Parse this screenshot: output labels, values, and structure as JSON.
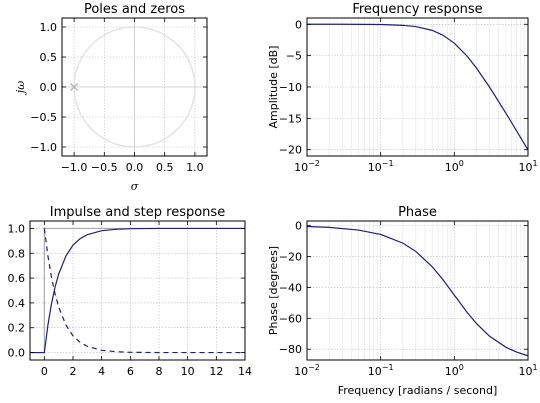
{
  "chart_data": [
    {
      "id": "pz",
      "type": "scatter",
      "title": "Poles and zeros",
      "xlabel": "σ",
      "ylabel": "jω",
      "xlim": [
        -1.2,
        1.2
      ],
      "ylim": [
        -1.15,
        1.15
      ],
      "xticks": [
        -1.0,
        -0.5,
        0.0,
        0.5,
        1.0
      ],
      "xticklabels": [
        "−1.0",
        "−0.5",
        "0.0",
        "0.5",
        "1.0"
      ],
      "yticks": [
        -1.0,
        -0.5,
        0.0,
        0.5,
        1.0
      ],
      "yticklabels": [
        "−1.0",
        "−0.5",
        "0.0",
        "0.5",
        "1.0"
      ],
      "grid": true,
      "poles": [
        {
          "x": -1.0,
          "y": 0.0
        }
      ],
      "zeros": [],
      "unit_circle": true
    },
    {
      "id": "freq",
      "type": "line",
      "title": "Frequency response",
      "xlabel": "",
      "ylabel": "Amplitude [dB]",
      "xscale": "log",
      "xlim": [
        0.01,
        10
      ],
      "ylim": [
        -21,
        1
      ],
      "xticks": [
        0.01,
        0.1,
        1,
        10
      ],
      "xticklabels": [
        [
          "10",
          "−2"
        ],
        [
          "10",
          "−1"
        ],
        [
          "10",
          "0"
        ],
        [
          "10",
          "1"
        ]
      ],
      "yticks": [
        0,
        -5,
        -10,
        -15,
        -20
      ],
      "yticklabels": [
        "0",
        "−5",
        "−10",
        "−15",
        "−20"
      ],
      "grid": true,
      "series": [
        {
          "x": [
            0.01,
            0.03,
            0.1,
            0.2,
            0.3,
            0.5,
            0.7,
            1.0,
            1.5,
            2.0,
            3.0,
            5.0,
            7.0,
            10.0
          ],
          "y": [
            0.0,
            0.0,
            -0.04,
            -0.17,
            -0.37,
            -0.97,
            -1.74,
            -3.01,
            -5.12,
            -6.99,
            -10.0,
            -14.15,
            -17.0,
            -20.04
          ]
        }
      ]
    },
    {
      "id": "impulse",
      "type": "line",
      "title": "Impulse and step response",
      "xlabel": "",
      "ylabel": "",
      "xlim": [
        -1,
        14
      ],
      "ylim": [
        -0.06,
        1.06
      ],
      "xticks": [
        0,
        2,
        4,
        6,
        8,
        10,
        12,
        14
      ],
      "xticklabels": [
        "0",
        "2",
        "4",
        "6",
        "8",
        "10",
        "12",
        "14"
      ],
      "yticks": [
        0.0,
        0.2,
        0.4,
        0.6,
        0.8,
        1.0
      ],
      "yticklabels": [
        "0.0",
        "0.2",
        "0.4",
        "0.6",
        "0.8",
        "1.0"
      ],
      "grid": true,
      "series": [
        {
          "style": "solid-gray",
          "x": [
            -1,
            0,
            0,
            14
          ],
          "y": [
            0,
            0,
            1,
            1
          ]
        },
        {
          "style": "solid",
          "x": [
            -1,
            0,
            0.25,
            0.5,
            0.75,
            1,
            1.5,
            2,
            2.5,
            3,
            4,
            5,
            6,
            8,
            10,
            14
          ],
          "y": [
            0,
            0,
            0.221,
            0.393,
            0.528,
            0.632,
            0.777,
            0.865,
            0.918,
            0.95,
            0.982,
            0.993,
            0.998,
            1.0,
            1.0,
            1.0
          ]
        },
        {
          "style": "dashed",
          "x": [
            0,
            0.25,
            0.5,
            0.75,
            1,
            1.5,
            2,
            2.5,
            3,
            4,
            5,
            6,
            8,
            10,
            14
          ],
          "y": [
            1.0,
            0.779,
            0.607,
            0.472,
            0.368,
            0.223,
            0.135,
            0.082,
            0.05,
            0.018,
            0.007,
            0.002,
            0.0,
            0.0,
            0.0
          ]
        }
      ]
    },
    {
      "id": "phase",
      "type": "line",
      "title": "Phase",
      "xlabel": "Frequency [radians / second]",
      "ylabel": "Phase [degrees]",
      "xscale": "log",
      "xlim": [
        0.01,
        10
      ],
      "ylim": [
        -87,
        3
      ],
      "xticks": [
        0.01,
        0.1,
        1,
        10
      ],
      "xticklabels": [
        [
          "10",
          "−2"
        ],
        [
          "10",
          "−1"
        ],
        [
          "10",
          "0"
        ],
        [
          "10",
          "1"
        ]
      ],
      "yticks": [
        0,
        -20,
        -40,
        -60,
        -80
      ],
      "yticklabels": [
        "0",
        "−20",
        "−40",
        "−60",
        "−80"
      ],
      "grid": true,
      "series": [
        {
          "x": [
            0.01,
            0.02,
            0.05,
            0.1,
            0.2,
            0.3,
            0.5,
            0.7,
            1.0,
            1.5,
            2.0,
            3.0,
            5.0,
            7.0,
            10.0
          ],
          "y": [
            -0.57,
            -1.15,
            -2.86,
            -5.71,
            -11.31,
            -16.7,
            -26.57,
            -34.99,
            -45.0,
            -56.31,
            -63.43,
            -71.57,
            -78.69,
            -81.87,
            -84.29
          ]
        }
      ]
    }
  ]
}
